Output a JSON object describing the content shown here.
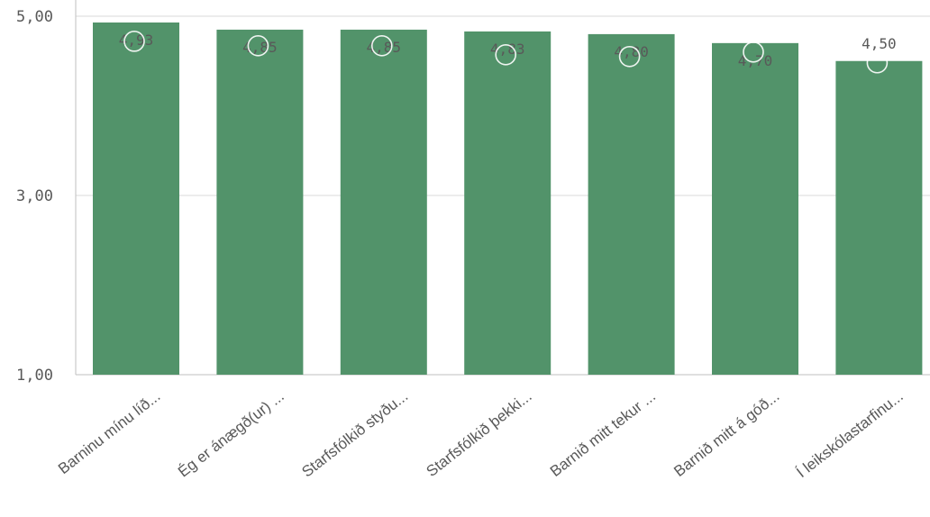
{
  "chart_data": {
    "type": "bar",
    "categories": [
      "Barninu mínu líð...",
      "Ég er ánægð(ur) ...",
      "Starfsfólkið styðu...",
      "Starfsfólkið þekki...",
      "Barnið mitt tekur ...",
      "Barnið mitt á góð...",
      "Í leikskólastarfinu..."
    ],
    "series": [
      {
        "values": [
          4.93,
          4.85,
          4.85,
          4.83,
          4.8,
          4.7,
          4.5
        ],
        "value_labels": [
          "4,93",
          "4,85",
          "4,85",
          "4,83",
          "4,80",
          "4,70",
          "4,50"
        ]
      }
    ],
    "markers": [
      4.72,
      4.67,
      4.67,
      4.57,
      4.55,
      4.6,
      4.48
    ],
    "yticks": [
      {
        "value": 1,
        "label": "1,00"
      },
      {
        "value": 3,
        "label": "3,00"
      },
      {
        "value": 5,
        "label": "5,00"
      }
    ],
    "ylim": [
      1,
      5
    ],
    "title": "",
    "xlabel": "",
    "ylabel": "",
    "grid": true,
    "colors": {
      "bar": "#52936a",
      "marker": "#ffffff",
      "grid": "#d9d9d9",
      "axis": "#bfbfbf",
      "text": "#595959"
    }
  }
}
